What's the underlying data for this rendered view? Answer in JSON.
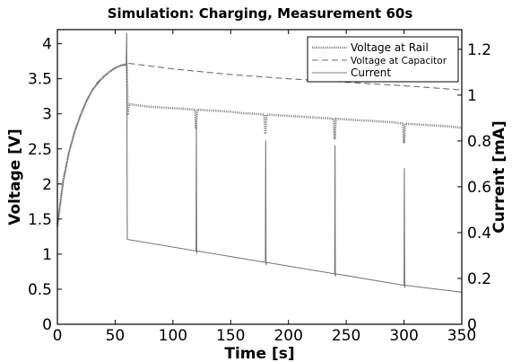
{
  "chart_data": {
    "type": "line",
    "title": "Simulation: Charging, Measurement 60s",
    "xlabel": "Time [s]",
    "ylabel": "Voltage [V]",
    "y2label": "Current [mA]",
    "xlim": [
      0,
      350
    ],
    "ylim": [
      0,
      4.2
    ],
    "y2lim": [
      0,
      1.2857
    ],
    "xticks": [
      0,
      50,
      100,
      150,
      200,
      250,
      300,
      350
    ],
    "yticks": [
      0,
      0.5,
      1,
      1.5,
      2,
      2.5,
      3,
      3.5,
      4
    ],
    "y2ticks": [
      0,
      0.2,
      0.4,
      0.6,
      0.8,
      1,
      1.2
    ],
    "grid": false,
    "legend_position": "top-right",
    "series": [
      {
        "name": "Voltage at Rail",
        "axis": "left",
        "style": "dotted",
        "color": "#8c8c8c",
        "x": [
          0,
          5,
          10,
          15,
          20,
          25,
          30,
          35,
          40,
          45,
          50,
          55,
          60,
          61,
          62,
          70,
          80,
          90,
          100,
          110,
          119,
          120,
          121,
          130,
          140,
          150,
          160,
          170,
          179,
          180,
          181,
          190,
          200,
          210,
          220,
          230,
          239,
          240,
          241,
          250,
          260,
          270,
          280,
          290,
          299,
          300,
          301,
          310,
          320,
          330,
          340,
          350
        ],
        "y": [
          1.4,
          2.05,
          2.45,
          2.75,
          2.98,
          3.18,
          3.33,
          3.45,
          3.53,
          3.6,
          3.65,
          3.69,
          3.71,
          3.0,
          3.14,
          3.12,
          3.1,
          3.09,
          3.08,
          3.07,
          3.06,
          2.8,
          3.06,
          3.05,
          3.04,
          3.03,
          3.01,
          3.0,
          2.99,
          2.73,
          2.99,
          2.98,
          2.97,
          2.96,
          2.95,
          2.94,
          2.93,
          2.65,
          2.93,
          2.92,
          2.91,
          2.9,
          2.89,
          2.88,
          2.86,
          2.58,
          2.86,
          2.85,
          2.84,
          2.83,
          2.82,
          2.8
        ]
      },
      {
        "name": "Voltage at Capacitor",
        "axis": "left",
        "style": "dashed",
        "color": "#6e6e6e",
        "x": [
          0,
          5,
          10,
          15,
          20,
          25,
          30,
          35,
          40,
          45,
          50,
          55,
          60,
          62,
          100,
          150,
          200,
          250,
          300,
          350
        ],
        "y": [
          1.4,
          2.05,
          2.45,
          2.75,
          2.98,
          3.18,
          3.33,
          3.45,
          3.53,
          3.6,
          3.65,
          3.69,
          3.71,
          3.72,
          3.64,
          3.56,
          3.5,
          3.45,
          3.4,
          3.34
        ]
      },
      {
        "name": "Current",
        "axis": "right",
        "style": "solid",
        "color": "#777777",
        "x": [
          0,
          5,
          10,
          15,
          20,
          25,
          30,
          35,
          40,
          45,
          50,
          55,
          59.5,
          60,
          60.5,
          61,
          120,
          120.3,
          120.6,
          121,
          180,
          180.3,
          180.6,
          181,
          240,
          240.3,
          240.6,
          241,
          300,
          300.3,
          300.6,
          301,
          350
        ],
        "y": [
          0.43,
          0.62,
          0.75,
          0.84,
          0.91,
          0.97,
          1.02,
          1.05,
          1.08,
          1.1,
          1.12,
          1.13,
          1.13,
          1.27,
          0.37,
          0.37,
          0.32,
          0.86,
          0.31,
          0.32,
          0.27,
          0.8,
          0.26,
          0.27,
          0.22,
          0.78,
          0.21,
          0.22,
          0.17,
          0.68,
          0.16,
          0.17,
          0.14
        ]
      }
    ]
  }
}
